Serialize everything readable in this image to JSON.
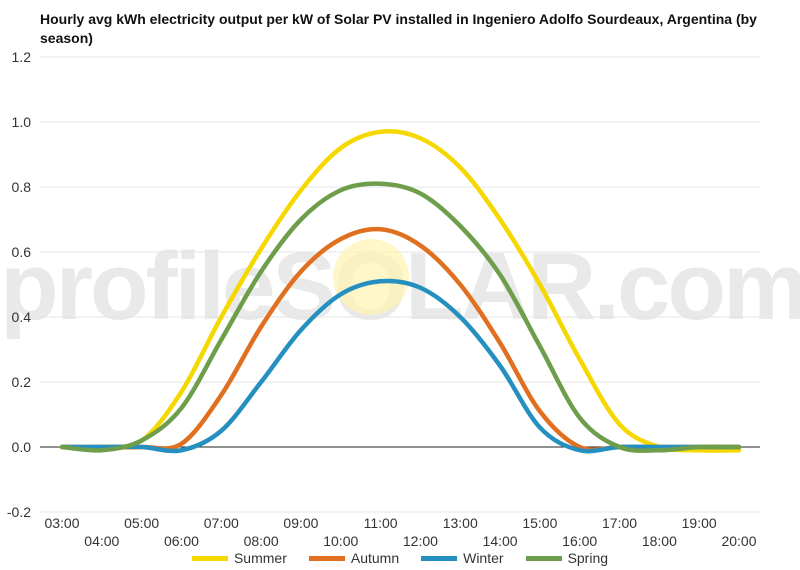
{
  "title": "Hourly avg kWh electricity output per kW of Solar PV installed in Ingeniero Adolfo Sourdeaux, Argentina (by season)",
  "watermark": "profileSOLAR.com",
  "chart_data": {
    "type": "line",
    "title": "Hourly avg kWh electricity output per kW of Solar PV installed in Ingeniero Adolfo Sourdeaux, Argentina (by season)",
    "xlabel": "",
    "ylabel": "",
    "ylim": [
      -0.2,
      1.2
    ],
    "yticks": [
      -0.2,
      0.0,
      0.2,
      0.4,
      0.6,
      0.8,
      1.0,
      1.2
    ],
    "x": [
      "03:00",
      "04:00",
      "05:00",
      "06:00",
      "07:00",
      "08:00",
      "09:00",
      "10:00",
      "11:00",
      "12:00",
      "13:00",
      "14:00",
      "15:00",
      "16:00",
      "17:00",
      "18:00",
      "19:00",
      "20:00"
    ],
    "grid": true,
    "legend_position": "bottom",
    "series": [
      {
        "name": "Summer",
        "color": "#f5d800",
        "values": [
          0.0,
          0.0,
          0.02,
          0.17,
          0.4,
          0.61,
          0.79,
          0.92,
          0.97,
          0.95,
          0.86,
          0.7,
          0.5,
          0.27,
          0.07,
          0.0,
          -0.01,
          -0.01
        ]
      },
      {
        "name": "Autumn",
        "color": "#e07020",
        "values": [
          0.0,
          0.0,
          0.0,
          0.01,
          0.16,
          0.37,
          0.54,
          0.64,
          0.67,
          0.62,
          0.5,
          0.32,
          0.11,
          0.0,
          0.0,
          0.0,
          0.0,
          0.0
        ]
      },
      {
        "name": "Winter",
        "color": "#2590c0",
        "values": [
          0.0,
          0.0,
          0.0,
          -0.01,
          0.05,
          0.2,
          0.36,
          0.47,
          0.51,
          0.49,
          0.4,
          0.25,
          0.06,
          -0.01,
          0.0,
          0.0,
          0.0,
          0.0
        ]
      },
      {
        "name": "Spring",
        "color": "#6e9e4c",
        "values": [
          0.0,
          -0.01,
          0.02,
          0.12,
          0.33,
          0.54,
          0.7,
          0.79,
          0.81,
          0.78,
          0.68,
          0.53,
          0.31,
          0.09,
          0.0,
          -0.01,
          0.0,
          0.0
        ]
      }
    ]
  }
}
